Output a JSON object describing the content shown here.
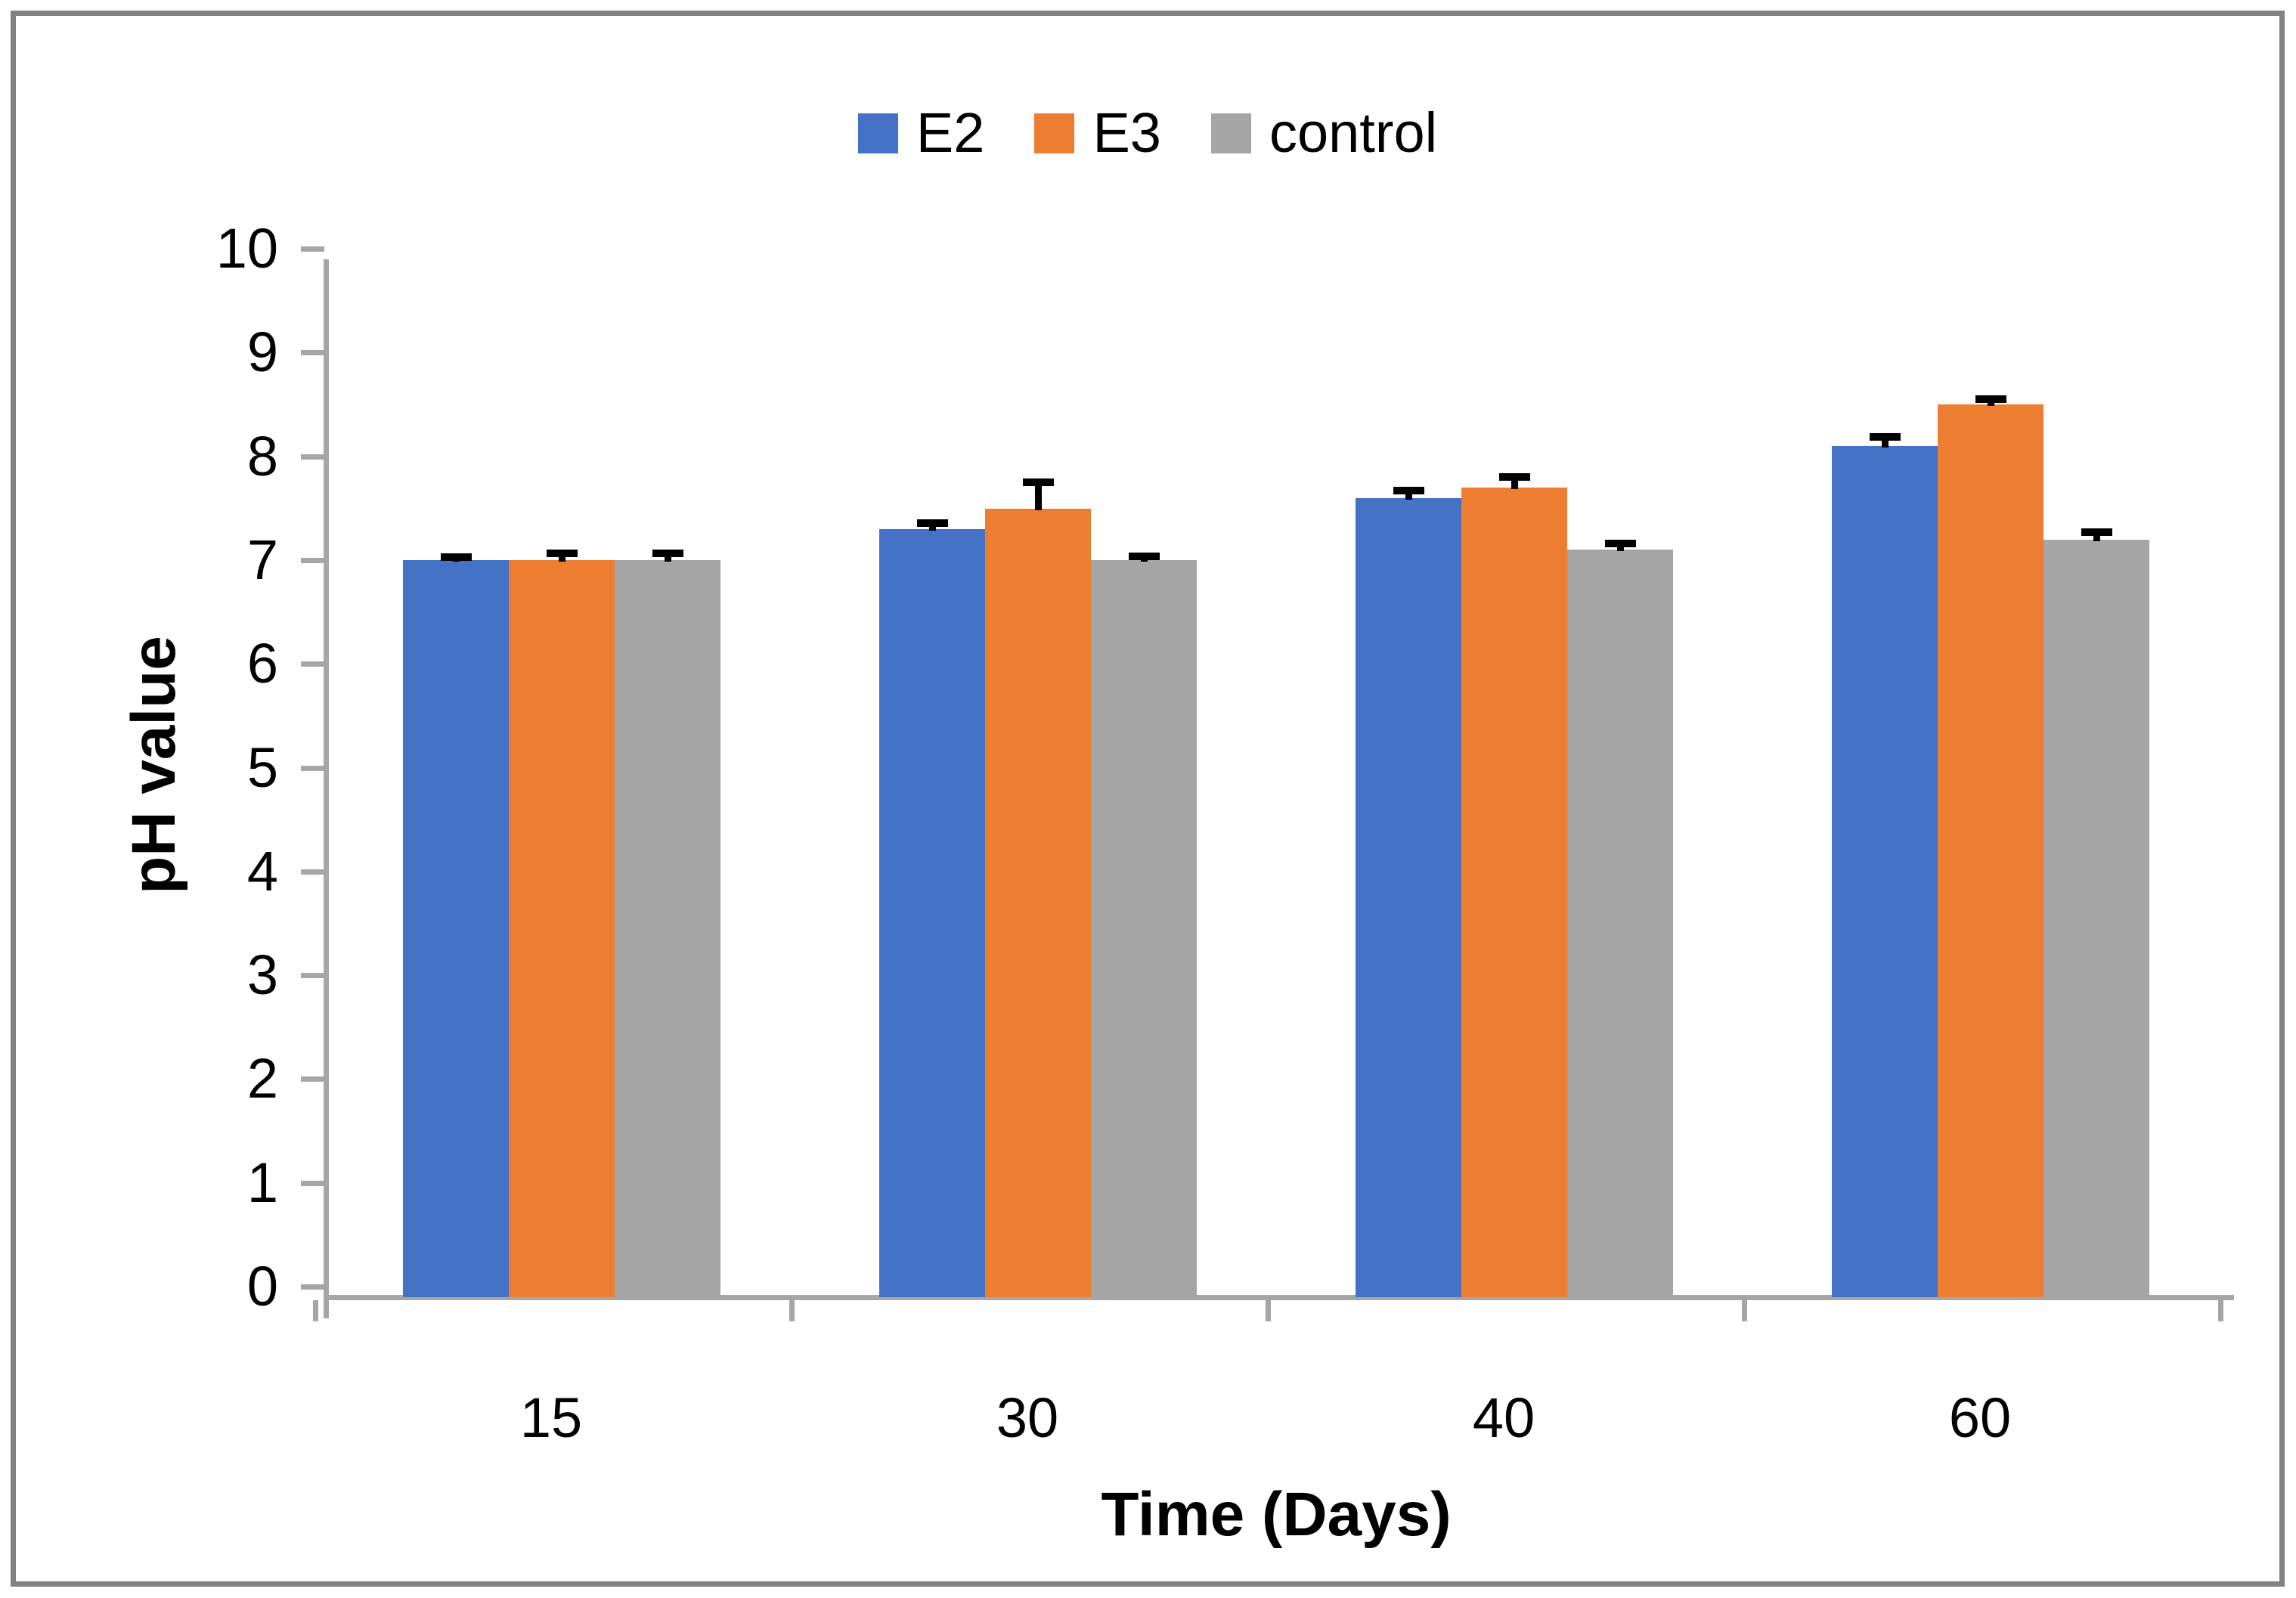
{
  "chart_data": {
    "type": "bar",
    "xlabel": "Time (Days)",
    "ylabel": "pH value",
    "categories": [
      "15",
      "30",
      "40",
      "60"
    ],
    "series": [
      {
        "name": "E2",
        "color": "#4472C4",
        "values": [
          7.1,
          7.4,
          7.7,
          8.2
        ],
        "errors_plus": [
          0.03,
          0.06,
          0.07,
          0.09
        ]
      },
      {
        "name": "E3",
        "color": "#ED7D31",
        "values": [
          7.1,
          7.6,
          7.8,
          8.6
        ],
        "errors_plus": [
          0.07,
          0.25,
          0.1,
          0.05
        ]
      },
      {
        "name": "control",
        "color": "#A5A5A5",
        "values": [
          7.1,
          7.1,
          7.2,
          7.3
        ],
        "errors_plus": [
          0.07,
          0.04,
          0.06,
          0.07
        ]
      }
    ],
    "ylim": [
      0,
      10
    ],
    "yticks": [
      "0",
      "1",
      "2",
      "3",
      "4",
      "5",
      "6",
      "7",
      "8",
      "9",
      "10"
    ],
    "legend_position": "top-center",
    "grid": false,
    "error_bar_color": "#000000",
    "axis_color": "#A6A6A6"
  },
  "colors": {
    "frame_border": "#828282",
    "background": "#FFFFFF"
  }
}
